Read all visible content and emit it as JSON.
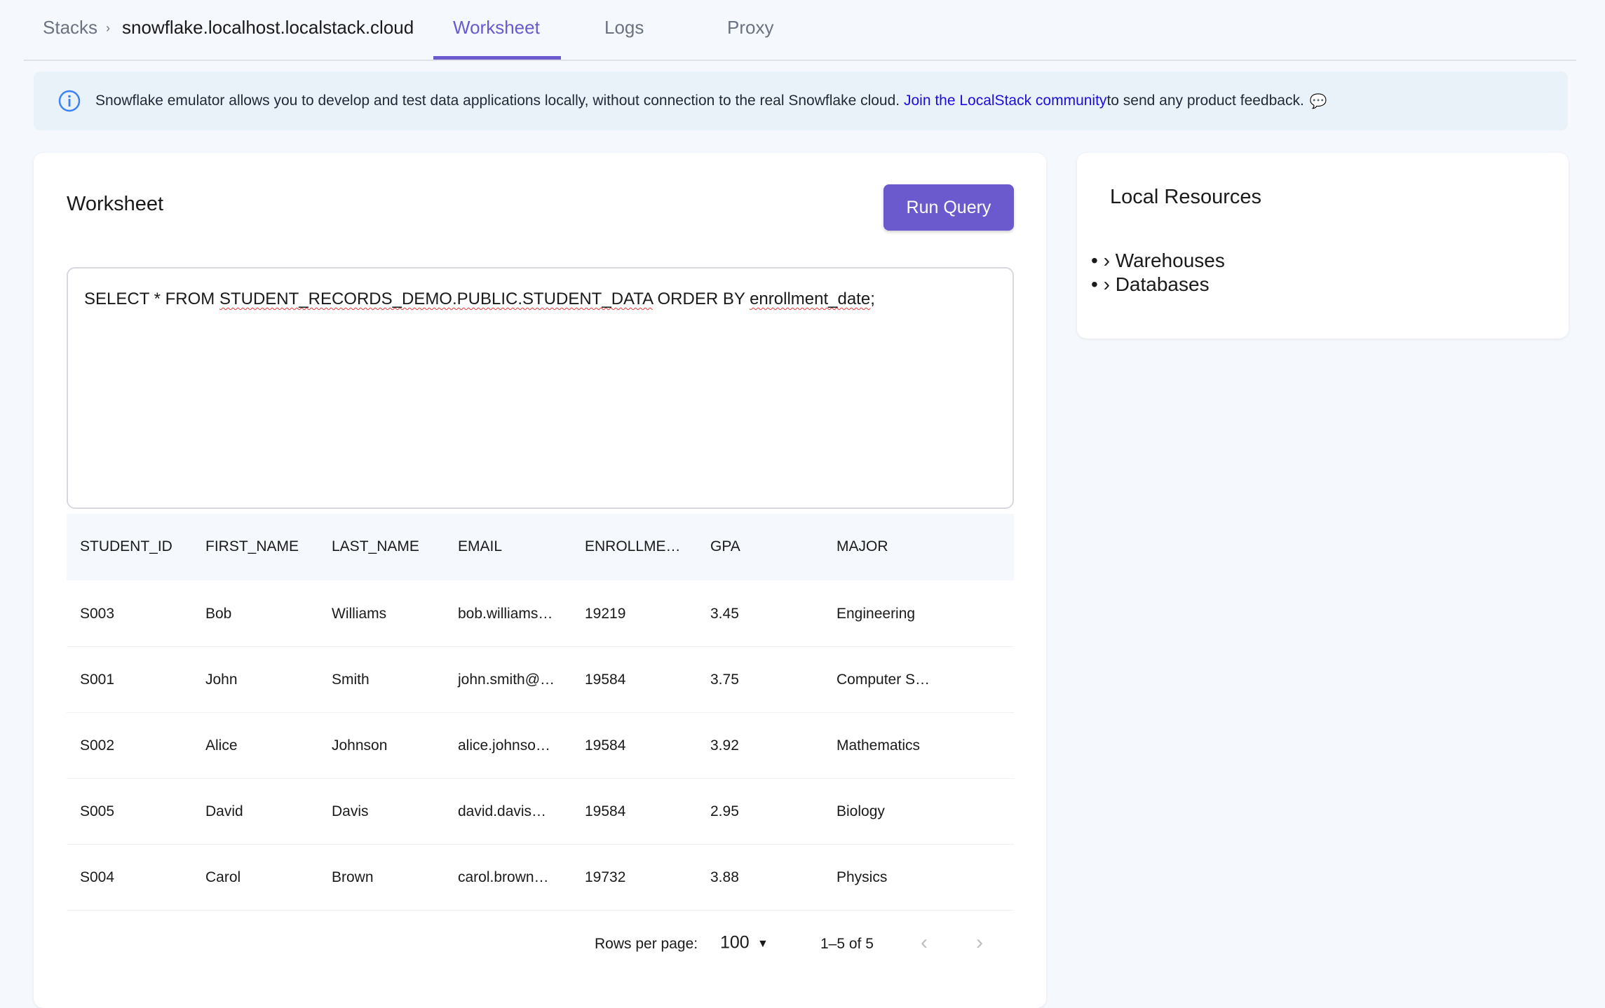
{
  "breadcrumb": {
    "root": "Stacks",
    "separator": "›",
    "current": "snowflake.localhost.localstack.cloud"
  },
  "tabs": [
    {
      "label": "Worksheet",
      "active": true
    },
    {
      "label": "Logs"
    },
    {
      "label": "Proxy"
    }
  ],
  "banner": {
    "text": "Snowflake emulator allows you to develop and test data applications locally, without connection to the real Snowflake cloud. ",
    "link": "Join the LocalStack community",
    "suffix": " to send any product feedback.",
    "icon": "info-icon"
  },
  "worksheet": {
    "title": "Worksheet",
    "run_label": "Run Query",
    "query": {
      "p1": "SELECT * FROM ",
      "p2": "STUDENT_RECORDS_DEMO.PUBLIC.STUDENT_DATA",
      "p3": " ORDER BY ",
      "p4": "enrollment_date",
      "p5": ";"
    },
    "columns": [
      "STUDENT_ID",
      "FIRST_NAME",
      "LAST_NAME",
      "EMAIL",
      "ENROLLME…",
      "GPA",
      "MAJOR"
    ],
    "rows": [
      [
        "S003",
        "Bob",
        "Williams",
        "bob.williams…",
        "19219",
        "3.45",
        "Engineering"
      ],
      [
        "S001",
        "John",
        "Smith",
        "john.smith@…",
        "19584",
        "3.75",
        "Computer S…"
      ],
      [
        "S002",
        "Alice",
        "Johnson",
        "alice.johnso…",
        "19584",
        "3.92",
        "Mathematics"
      ],
      [
        "S005",
        "David",
        "Davis",
        "david.davis…",
        "19584",
        "2.95",
        "Biology"
      ],
      [
        "S004",
        "Carol",
        "Brown",
        "carol.brown…",
        "19732",
        "3.88",
        "Physics"
      ]
    ],
    "pagination": {
      "rows_label": "Rows per page:",
      "rows_value": "100",
      "range": "1–5 of 5"
    }
  },
  "resources": {
    "title": "Local Resources",
    "items": [
      "Warehouses",
      "Databases"
    ]
  },
  "colors": {
    "accent": "#6a5acd",
    "link": "#1a0dde"
  }
}
